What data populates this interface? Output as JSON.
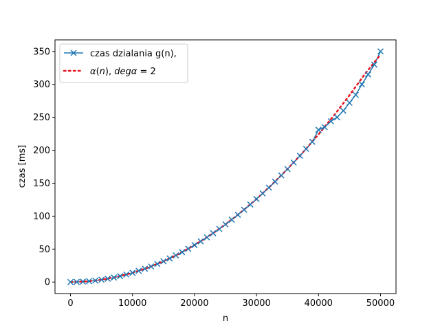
{
  "chart_data": {
    "type": "line",
    "title": "",
    "xlabel": "n",
    "ylabel": "czas [ms]",
    "xlim": [
      -2500,
      52500
    ],
    "ylim": [
      -17.5,
      367.5
    ],
    "xticks": [
      0,
      10000,
      20000,
      30000,
      40000,
      50000
    ],
    "yticks": [
      0,
      50,
      100,
      150,
      200,
      250,
      300,
      350
    ],
    "grid": false,
    "legend_position": "top-left",
    "series": [
      {
        "name": "czas dzialania g(n),",
        "style": "solid line with x markers",
        "color": "#1f77b4",
        "x": [
          0,
          1000,
          2000,
          3000,
          4000,
          5000,
          6000,
          7000,
          8000,
          9000,
          10000,
          11000,
          12000,
          13000,
          14000,
          15000,
          16000,
          17000,
          18000,
          19000,
          20000,
          21000,
          22000,
          23000,
          24000,
          25000,
          26000,
          27000,
          28000,
          29000,
          30000,
          31000,
          32000,
          33000,
          34000,
          35000,
          36000,
          37000,
          38000,
          39000,
          40000,
          41000,
          42000,
          43000,
          44000,
          45000,
          46000,
          47000,
          48000,
          49000,
          50000
        ],
        "values": [
          0,
          0.1,
          0.6,
          1.3,
          2.2,
          3.5,
          5.0,
          6.8,
          8.9,
          11.3,
          14.0,
          16.9,
          20.1,
          23.6,
          27.4,
          31.4,
          35.8,
          40.4,
          45.3,
          50.5,
          56.0,
          61.7,
          67.8,
          74.1,
          80.6,
          87.5,
          94.6,
          102.0,
          109.7,
          117.7,
          126.0,
          134.5,
          143.3,
          152.4,
          161.8,
          171.5,
          181.4,
          191.6,
          202.1,
          212.9,
          231.0,
          235.0,
          244.0,
          250.0,
          260.0,
          272.0,
          284.0,
          300.0,
          315.0,
          330.0,
          350.0
        ]
      },
      {
        "name": "α(n), degα = 2",
        "name_parts": {
          "alpha": "α",
          "n": "n",
          "deg": "deg",
          "alpha2": "α",
          "eq": " = 2"
        },
        "style": "dotted line",
        "color": "#e8121b",
        "x": [
          0,
          2500,
          5000,
          7500,
          10000,
          12500,
          15000,
          17500,
          20000,
          22500,
          25000,
          27500,
          30000,
          32500,
          35000,
          37500,
          40000,
          42500,
          45000,
          47500,
          50000
        ],
        "values": [
          0,
          0.9,
          3.5,
          7.9,
          14.0,
          21.9,
          31.5,
          42.9,
          56.0,
          70.9,
          87.5,
          105.9,
          126.0,
          147.9,
          171.5,
          196.9,
          224.0,
          252.9,
          283.5,
          315.9,
          345.0
        ]
      }
    ]
  }
}
